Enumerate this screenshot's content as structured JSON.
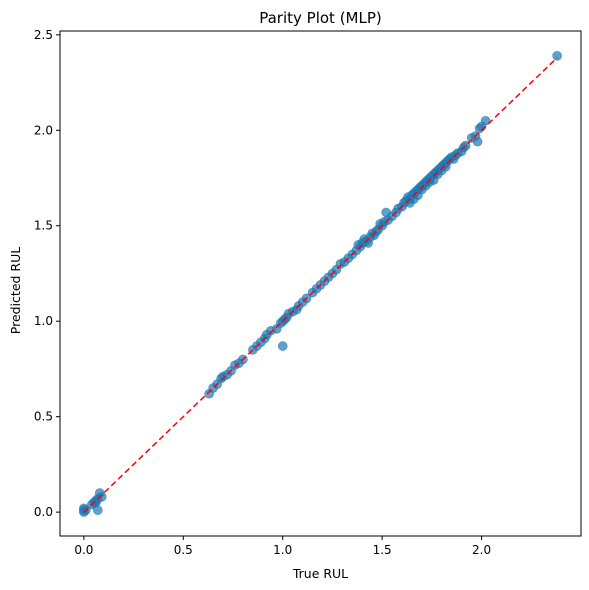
{
  "chart_data": {
    "type": "scatter",
    "title": "Parity Plot (MLP)",
    "xlabel": "True RUL",
    "ylabel": "Predicted RUL",
    "xlim": [
      -0.12,
      2.5
    ],
    "ylim": [
      -0.125,
      2.52
    ],
    "xticks": [
      0.0,
      0.5,
      1.0,
      1.5,
      2.0
    ],
    "xtick_labels": [
      "0.0",
      "0.5",
      "1.0",
      "1.5",
      "2.0"
    ],
    "yticks": [
      0.0,
      0.5,
      1.0,
      1.5,
      2.0,
      2.5
    ],
    "ytick_labels": [
      "0.0",
      "0.5",
      "1.0",
      "1.5",
      "2.0",
      "2.5"
    ],
    "grid": false,
    "legend": "none",
    "colors": {
      "points": "#1f77b4",
      "reference_line": "#ff0000"
    },
    "reference_line": {
      "style": "dashed",
      "x": [
        0.0,
        2.38
      ],
      "y": [
        0.0,
        2.38
      ]
    },
    "series": [
      {
        "points": [
          [
            0.0,
            0.01
          ],
          [
            0.0,
            0.0
          ],
          [
            0.0,
            0.02
          ],
          [
            0.01,
            0.01
          ],
          [
            0.04,
            0.04
          ],
          [
            0.05,
            0.05
          ],
          [
            0.06,
            0.06
          ],
          [
            0.07,
            0.07
          ],
          [
            0.08,
            0.1
          ],
          [
            0.09,
            0.08
          ],
          [
            0.07,
            0.01
          ],
          [
            0.06,
            0.05
          ],
          [
            0.63,
            0.62
          ],
          [
            0.65,
            0.65
          ],
          [
            0.67,
            0.67
          ],
          [
            0.69,
            0.7
          ],
          [
            0.7,
            0.71
          ],
          [
            0.72,
            0.72
          ],
          [
            0.74,
            0.74
          ],
          [
            0.76,
            0.77
          ],
          [
            0.78,
            0.78
          ],
          [
            0.8,
            0.8
          ],
          [
            0.85,
            0.85
          ],
          [
            0.87,
            0.87
          ],
          [
            0.89,
            0.89
          ],
          [
            0.91,
            0.91
          ],
          [
            0.92,
            0.93
          ],
          [
            0.94,
            0.95
          ],
          [
            0.97,
            0.96
          ],
          [
            0.99,
            0.99
          ],
          [
            1.0,
            1.0
          ],
          [
            1.01,
            1.01
          ],
          [
            1.02,
            1.02
          ],
          [
            1.03,
            1.04
          ],
          [
            1.05,
            1.05
          ],
          [
            1.07,
            1.06
          ],
          [
            1.08,
            1.08
          ],
          [
            1.1,
            1.1
          ],
          [
            1.12,
            1.12
          ],
          [
            1.0,
            0.87
          ],
          [
            1.15,
            1.15
          ],
          [
            1.17,
            1.17
          ],
          [
            1.19,
            1.19
          ],
          [
            1.21,
            1.21
          ],
          [
            1.23,
            1.23
          ],
          [
            1.25,
            1.25
          ],
          [
            1.27,
            1.27
          ],
          [
            1.29,
            1.3
          ],
          [
            1.31,
            1.31
          ],
          [
            1.33,
            1.33
          ],
          [
            1.35,
            1.35
          ],
          [
            1.37,
            1.37
          ],
          [
            1.39,
            1.39
          ],
          [
            1.4,
            1.41
          ],
          [
            1.42,
            1.42
          ],
          [
            1.44,
            1.44
          ],
          [
            1.45,
            1.46
          ],
          [
            1.47,
            1.47
          ],
          [
            1.48,
            1.48
          ],
          [
            1.5,
            1.5
          ],
          [
            1.38,
            1.4
          ],
          [
            1.41,
            1.43
          ],
          [
            1.43,
            1.41
          ],
          [
            1.46,
            1.45
          ],
          [
            1.49,
            1.51
          ],
          [
            1.51,
            1.52
          ],
          [
            1.52,
            1.57
          ],
          [
            1.53,
            1.53
          ],
          [
            1.55,
            1.55
          ],
          [
            1.57,
            1.57
          ],
          [
            1.58,
            1.59
          ],
          [
            1.6,
            1.6
          ],
          [
            1.61,
            1.62
          ],
          [
            1.62,
            1.63
          ],
          [
            1.63,
            1.65
          ],
          [
            1.64,
            1.64
          ],
          [
            1.65,
            1.66
          ],
          [
            1.66,
            1.67
          ],
          [
            1.67,
            1.68
          ],
          [
            1.68,
            1.69
          ],
          [
            1.69,
            1.7
          ],
          [
            1.7,
            1.71
          ],
          [
            1.71,
            1.72
          ],
          [
            1.72,
            1.73
          ],
          [
            1.73,
            1.74
          ],
          [
            1.74,
            1.75
          ],
          [
            1.75,
            1.76
          ],
          [
            1.76,
            1.77
          ],
          [
            1.77,
            1.78
          ],
          [
            1.78,
            1.79
          ],
          [
            1.79,
            1.8
          ],
          [
            1.8,
            1.81
          ],
          [
            1.81,
            1.82
          ],
          [
            1.82,
            1.83
          ],
          [
            1.83,
            1.84
          ],
          [
            1.84,
            1.85
          ],
          [
            1.85,
            1.86
          ],
          [
            1.86,
            1.85
          ],
          [
            1.87,
            1.87
          ],
          [
            1.88,
            1.88
          ],
          [
            1.9,
            1.89
          ],
          [
            1.91,
            1.91
          ],
          [
            1.92,
            1.92
          ],
          [
            1.95,
            1.96
          ],
          [
            1.97,
            1.97
          ],
          [
            1.98,
            1.94
          ],
          [
            1.99,
            2.01
          ],
          [
            2.0,
            2.02
          ],
          [
            2.02,
            2.05
          ],
          [
            2.38,
            2.39
          ],
          [
            1.64,
            1.62
          ],
          [
            1.66,
            1.64
          ],
          [
            1.68,
            1.66
          ],
          [
            1.7,
            1.69
          ],
          [
            1.72,
            1.71
          ],
          [
            1.74,
            1.73
          ],
          [
            1.76,
            1.74
          ],
          [
            1.78,
            1.77
          ],
          [
            1.8,
            1.79
          ],
          [
            1.82,
            1.81
          ]
        ]
      }
    ]
  }
}
